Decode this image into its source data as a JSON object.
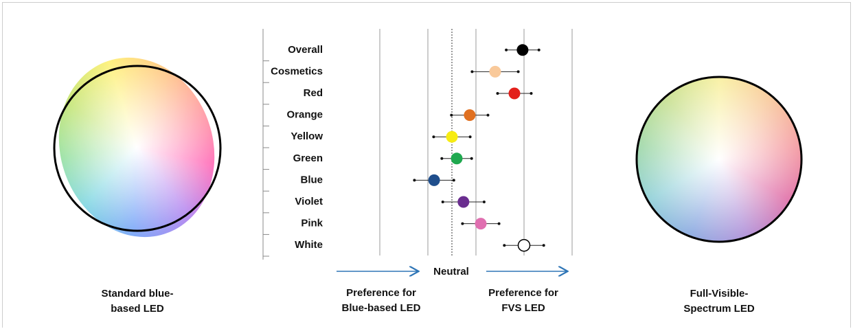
{
  "chart_data": {
    "type": "dot",
    "categories": [
      "Overall",
      "Cosmetics",
      "Red",
      "Orange",
      "Yellow",
      "Green",
      "Blue",
      "Violet",
      "Pink",
      "White"
    ],
    "values": [
      1.47,
      0.9,
      1.3,
      0.37,
      0.0,
      0.1,
      -0.37,
      0.24,
      0.6,
      1.5
    ],
    "errors": [
      0.34,
      0.48,
      0.35,
      0.38,
      0.38,
      0.31,
      0.41,
      0.43,
      0.38,
      0.41
    ],
    "colors": [
      "#000000",
      "#f9c99a",
      "#e3201b",
      "#e07020",
      "#f7ec13",
      "#1fa84f",
      "#1f4e8c",
      "#6a2d8f",
      "#e06fb0",
      "#ffffff"
    ],
    "xlim": [
      -1.5,
      2.5
    ],
    "xticks": [
      -1.5,
      -0.5,
      0.5,
      1.5,
      2.5
    ],
    "reference_line": 0,
    "reference_label": "Neutral",
    "left_direction": [
      "Preference for",
      "Blue-based LED"
    ],
    "right_direction": [
      "Preference for",
      "FVS LED"
    ],
    "left_caption": [
      "Standard blue-",
      "based LED"
    ],
    "right_caption": [
      "Full-Visible-",
      "Spectrum LED"
    ]
  }
}
